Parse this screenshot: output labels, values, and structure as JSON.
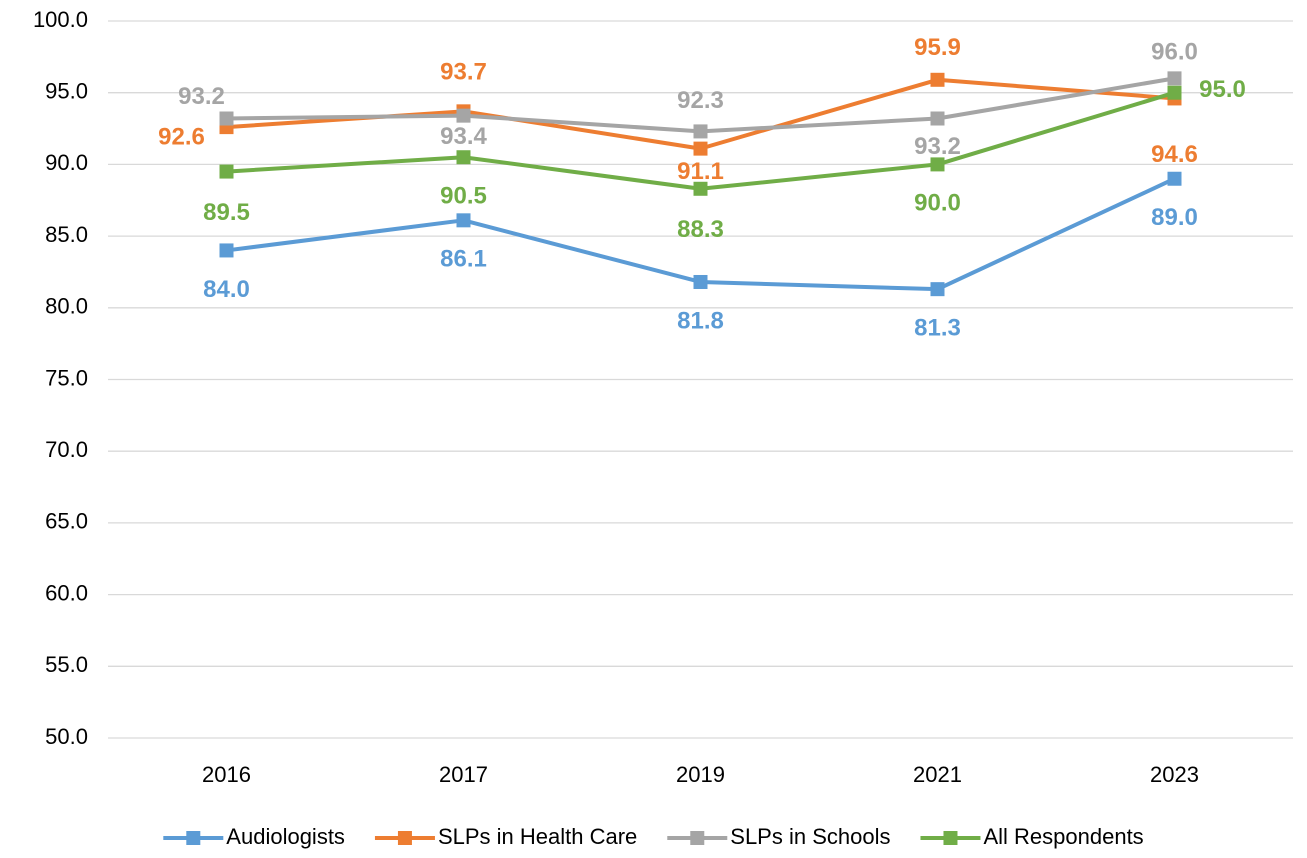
{
  "chart_data": {
    "type": "line",
    "categories": [
      "2016",
      "2017",
      "2019",
      "2021",
      "2023"
    ],
    "series": [
      {
        "name": "Audiologists",
        "color": "#5b9bd5",
        "values": [
          84.0,
          86.1,
          81.8,
          81.3,
          89.0
        ],
        "value_labels": [
          "84.0",
          "86.1",
          "81.8",
          "81.3",
          "89.0"
        ]
      },
      {
        "name": "SLPs in Health Care",
        "color": "#ed7d31",
        "values": [
          92.6,
          93.7,
          91.1,
          95.9,
          94.6
        ],
        "value_labels": [
          "92.6",
          "93.7",
          "91.1",
          "95.9",
          "94.6"
        ]
      },
      {
        "name": "SLPs in Schools",
        "color": "#a5a5a5",
        "values": [
          93.2,
          93.4,
          92.3,
          93.2,
          96.0
        ],
        "value_labels": [
          "93.2",
          "93.4",
          "92.3",
          "93.2",
          "96.0"
        ]
      },
      {
        "name": "All Respondents",
        "color": "#70ad47",
        "values": [
          89.5,
          90.5,
          88.3,
          90.0,
          95.0
        ],
        "value_labels": [
          "89.5",
          "90.5",
          "88.3",
          "90.0",
          "95.0"
        ]
      }
    ],
    "ylim": [
      50,
      100
    ],
    "yticks": [
      {
        "value": 50,
        "label": "50.0"
      },
      {
        "value": 55,
        "label": "55.0"
      },
      {
        "value": 60,
        "label": "60.0"
      },
      {
        "value": 65,
        "label": "65.0"
      },
      {
        "value": 70,
        "label": "70.0"
      },
      {
        "value": 75,
        "label": "75.0"
      },
      {
        "value": 80,
        "label": "80.0"
      },
      {
        "value": 85,
        "label": "85.0"
      },
      {
        "value": 90,
        "label": "90.0"
      },
      {
        "value": 95,
        "label": "95.0"
      },
      {
        "value": 100,
        "label": "100.0"
      }
    ],
    "grid": true,
    "legend": "bottom"
  }
}
